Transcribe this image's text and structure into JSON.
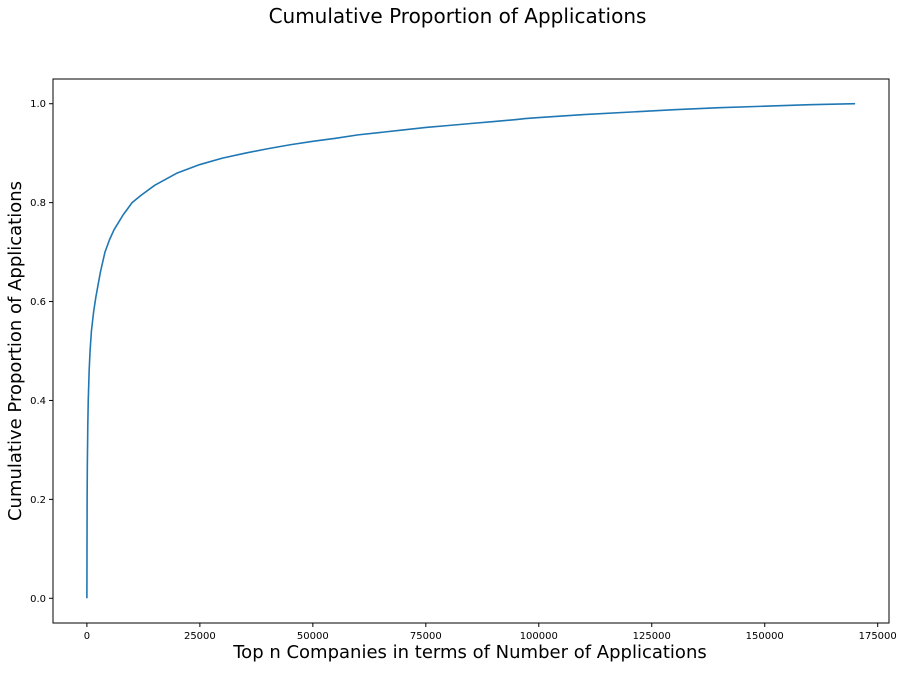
{
  "chart_data": {
    "type": "line",
    "title": "Cumulative Proportion of Applications",
    "xlabel": "Top n Companies in terms of Number of Applications",
    "ylabel": "Cumulative Proportion of Applications",
    "xlim": [
      -7500,
      177500
    ],
    "ylim": [
      -0.05,
      1.05
    ],
    "x_ticks": [
      0,
      25000,
      50000,
      75000,
      100000,
      125000,
      150000,
      175000
    ],
    "x_tick_labels": [
      "0",
      "25000",
      "50000",
      "75000",
      "100000",
      "125000",
      "150000",
      "175000"
    ],
    "y_ticks": [
      0.0,
      0.2,
      0.4,
      0.6,
      0.8,
      1.0
    ],
    "y_tick_labels": [
      "0.0",
      "0.2",
      "0.4",
      "0.6",
      "0.8",
      "1.0"
    ],
    "grid": false,
    "legend": "none",
    "series": [
      {
        "color": "#1f77b4",
        "x": [
          0,
          50,
          100,
          200,
          300,
          500,
          700,
          1000,
          1500,
          2000,
          2500,
          3000,
          4000,
          5000,
          6000,
          7000,
          8000,
          10000,
          12000,
          15000,
          20000,
          25000,
          30000,
          35000,
          40000,
          45000,
          50000,
          55000,
          60000,
          65000,
          70000,
          75000,
          80000,
          85000,
          90000,
          95000,
          97000,
          100000,
          110000,
          120000,
          130000,
          140000,
          150000,
          160000,
          170000
        ],
        "y": [
          0.0,
          0.2,
          0.27,
          0.35,
          0.4,
          0.46,
          0.5,
          0.54,
          0.58,
          0.61,
          0.635,
          0.66,
          0.7,
          0.725,
          0.745,
          0.76,
          0.775,
          0.8,
          0.815,
          0.835,
          0.86,
          0.877,
          0.89,
          0.9,
          0.909,
          0.917,
          0.924,
          0.93,
          0.937,
          0.942,
          0.947,
          0.952,
          0.956,
          0.96,
          0.964,
          0.968,
          0.97,
          0.972,
          0.978,
          0.983,
          0.988,
          0.992,
          0.995,
          0.998,
          1.0
        ]
      }
    ]
  }
}
